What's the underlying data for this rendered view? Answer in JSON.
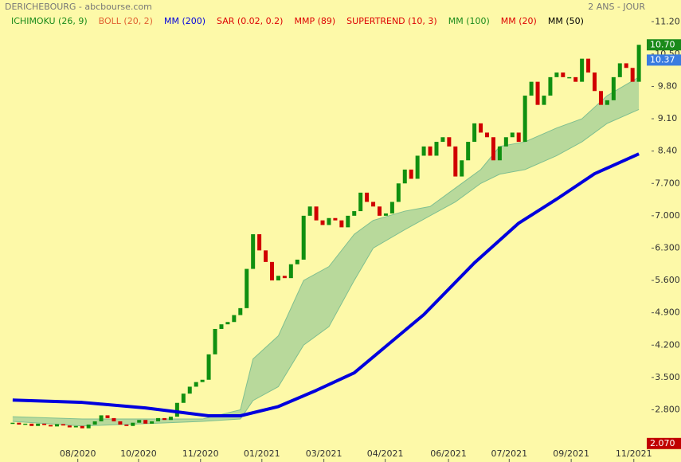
{
  "chart_data": {
    "type": "candlestick",
    "title": "DERICHEBOURG - abcbourse.com",
    "subtitle": "2 ANS - JOUR",
    "indicators": [
      {
        "name": "ICHIMOKU (26, 9)",
        "color": "#1a8a1a"
      },
      {
        "name": "BOLL (20, 2)",
        "color": "#e06030"
      },
      {
        "name": "MM (200)",
        "color": "#0000dd"
      },
      {
        "name": "SAR (0.02, 0.2)",
        "color": "#dd0000"
      },
      {
        "name": "MMP (89)",
        "color": "#dd0000"
      },
      {
        "name": "SUPERTREND (10, 3)",
        "color": "#dd0000"
      },
      {
        "name": "MM (100)",
        "color": "#1a8a1a"
      },
      {
        "name": "MM (20)",
        "color": "#dd0000"
      },
      {
        "name": "MM (50)",
        "color": "#000000"
      }
    ],
    "close": [
      2.52,
      2.48,
      2.5,
      2.45,
      2.5,
      2.47,
      2.44,
      2.49,
      2.46,
      2.42,
      2.45,
      2.4,
      2.48,
      2.55,
      2.68,
      2.62,
      2.55,
      2.48,
      2.45,
      2.52,
      2.58,
      2.5,
      2.55,
      2.62,
      2.58,
      2.65,
      2.95,
      3.15,
      3.3,
      3.4,
      3.45,
      4.0,
      4.55,
      4.65,
      4.7,
      4.85,
      5.0,
      5.85,
      6.6,
      6.25,
      6.0,
      5.6,
      5.7,
      5.65,
      5.95,
      6.05,
      7.0,
      7.2,
      6.9,
      6.8,
      6.95,
      6.9,
      6.75,
      7.0,
      7.1,
      7.5,
      7.3,
      7.2,
      7.0,
      7.05,
      7.3,
      7.7,
      8.0,
      7.8,
      8.3,
      8.5,
      8.3,
      8.6,
      8.7,
      8.5,
      7.85,
      8.2,
      8.6,
      9.0,
      8.8,
      8.7,
      8.2,
      8.5,
      8.7,
      8.8,
      8.6,
      9.6,
      9.9,
      9.4,
      9.6,
      10.0,
      10.1,
      10.0,
      10.0,
      9.9,
      10.4,
      10.1,
      9.7,
      9.4,
      9.5,
      10.0,
      10.3,
      10.2,
      9.9,
      10.7
    ],
    "up_color": "#109010",
    "down_color": "#d00000",
    "mm200": {
      "name": "MM (200)",
      "color": "#0000dd",
      "x": [
        0,
        11,
        21,
        31,
        36,
        42,
        48,
        54,
        65,
        73,
        80,
        86,
        92,
        99
      ],
      "values": [
        3.01,
        2.96,
        2.84,
        2.67,
        2.67,
        2.87,
        3.22,
        3.6,
        4.86,
        5.98,
        6.84,
        7.36,
        7.91,
        8.34
      ]
    },
    "cloud": {
      "color": "#7fbf90",
      "x": [
        0,
        11,
        21,
        30,
        36,
        38,
        42,
        46,
        50,
        54,
        57,
        62,
        66,
        70,
        74,
        77,
        81,
        86,
        90,
        94,
        99
      ],
      "upper": [
        2.65,
        2.6,
        2.6,
        2.6,
        2.8,
        3.9,
        4.4,
        5.6,
        5.9,
        6.6,
        6.9,
        7.1,
        7.2,
        7.6,
        8.0,
        8.5,
        8.6,
        8.9,
        9.1,
        9.6,
        10.0
      ],
      "lower": [
        2.55,
        2.45,
        2.5,
        2.55,
        2.6,
        3.0,
        3.3,
        4.2,
        4.6,
        5.6,
        6.3,
        6.7,
        7.0,
        7.3,
        7.7,
        7.9,
        8.0,
        8.3,
        8.6,
        9.0,
        9.3
      ]
    },
    "xlim": [
      -2,
      101
    ],
    "xticks": [
      {
        "value": 10.3,
        "label": "08/2020"
      },
      {
        "value": 19.9,
        "label": "10/2020"
      },
      {
        "value": 29.7,
        "label": "11/2020"
      },
      {
        "value": 39.4,
        "label": "01/2021"
      },
      {
        "value": 49.2,
        "label": "03/2021"
      },
      {
        "value": 58.9,
        "label": "04/2021"
      },
      {
        "value": 68.9,
        "label": "06/2021"
      },
      {
        "value": 78.5,
        "label": "07/2021"
      },
      {
        "value": 88.3,
        "label": "09/2021"
      },
      {
        "value": 98.2,
        "label": "11/2021"
      }
    ],
    "ylim": [
      1.67,
      11.67
    ],
    "yticks": [
      {
        "value": 11.2,
        "label": "11.20"
      },
      {
        "value": 10.5,
        "label": "10.50"
      },
      {
        "value": 9.8,
        "label": "9.80"
      },
      {
        "value": 9.1,
        "label": "9.10"
      },
      {
        "value": 8.4,
        "label": "8.40"
      },
      {
        "value": 7.7,
        "label": "7.700"
      },
      {
        "value": 7,
        "label": "7.000"
      },
      {
        "value": 6.3,
        "label": "6.300"
      },
      {
        "value": 5.6,
        "label": "5.600"
      },
      {
        "value": 4.9,
        "label": "4.900"
      },
      {
        "value": 4.2,
        "label": "4.200"
      },
      {
        "value": 3.5,
        "label": "3.500"
      },
      {
        "value": 2.8,
        "label": "2.800"
      }
    ],
    "markers": [
      {
        "value": 10.7,
        "label": "10.70",
        "color": "#1a8a1a"
      },
      {
        "value": 10.37,
        "label": "10.37",
        "color": "#3a7ce0"
      },
      {
        "value": 2.07,
        "label": "2.070",
        "color": "#c00000"
      }
    ]
  }
}
